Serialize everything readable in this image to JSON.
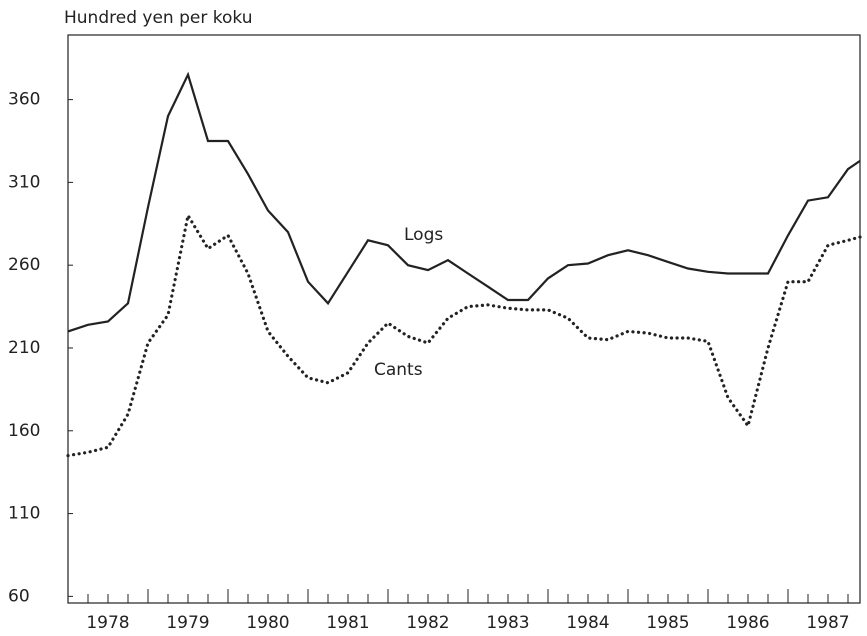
{
  "chart_data": {
    "type": "line",
    "y_label": "Hundred yen per koku",
    "annotations": [
      "Logs",
      "Cants"
    ],
    "x": [
      1978,
      1978.25,
      1978.5,
      1978.75,
      1979,
      1979.25,
      1979.5,
      1979.75,
      1980,
      1980.25,
      1980.5,
      1980.75,
      1981,
      1981.25,
      1981.5,
      1981.75,
      1982,
      1982.25,
      1982.5,
      1982.75,
      1983,
      1983.25,
      1983.5,
      1983.75,
      1984,
      1984.25,
      1984.5,
      1984.75,
      1985,
      1985.25,
      1985.5,
      1985.75,
      1986,
      1986.25,
      1986.5,
      1986.75,
      1987,
      1987.25,
      1987.5,
      1987.75,
      1987.9
    ],
    "series": [
      {
        "name": "Logs",
        "color": "#222222",
        "style": "solid",
        "values": [
          220,
          224,
          226,
          237,
          295,
          350,
          375,
          335,
          335,
          315,
          293,
          280,
          250,
          237,
          256,
          275,
          272,
          260,
          257,
          263,
          255,
          247,
          239,
          239,
          252,
          260,
          261,
          266,
          269,
          266,
          262,
          258,
          256,
          255,
          255,
          255,
          278,
          299,
          301,
          318,
          323
        ]
      },
      {
        "name": "Cants",
        "color": "#222222",
        "style": "dotted",
        "values": [
          145,
          147,
          150,
          170,
          213,
          230,
          290,
          270,
          278,
          255,
          220,
          205,
          192,
          189,
          195,
          213,
          225,
          217,
          213,
          228,
          235,
          236,
          234,
          233,
          233,
          228,
          216,
          215,
          220,
          219,
          216,
          216,
          214,
          180,
          163,
          210,
          250,
          250,
          272,
          275,
          277
        ]
      }
    ],
    "xlim": [
      1978,
      1987.9
    ],
    "xticks": [
      {
        "value": 1978.5,
        "label": "1978"
      },
      {
        "value": 1979.5,
        "label": "1979"
      },
      {
        "value": 1980.5,
        "label": "1980"
      },
      {
        "value": 1981.5,
        "label": "1981"
      },
      {
        "value": 1982.5,
        "label": "1982"
      },
      {
        "value": 1983.5,
        "label": "1983"
      },
      {
        "value": 1984.5,
        "label": "1984"
      },
      {
        "value": 1985.5,
        "label": "1985"
      },
      {
        "value": 1986.5,
        "label": "1986"
      },
      {
        "value": 1987.5,
        "label": "1987"
      }
    ],
    "ylim": [
      56,
      399
    ],
    "yticks": [
      60,
      110,
      160,
      210,
      260,
      310,
      360
    ]
  }
}
